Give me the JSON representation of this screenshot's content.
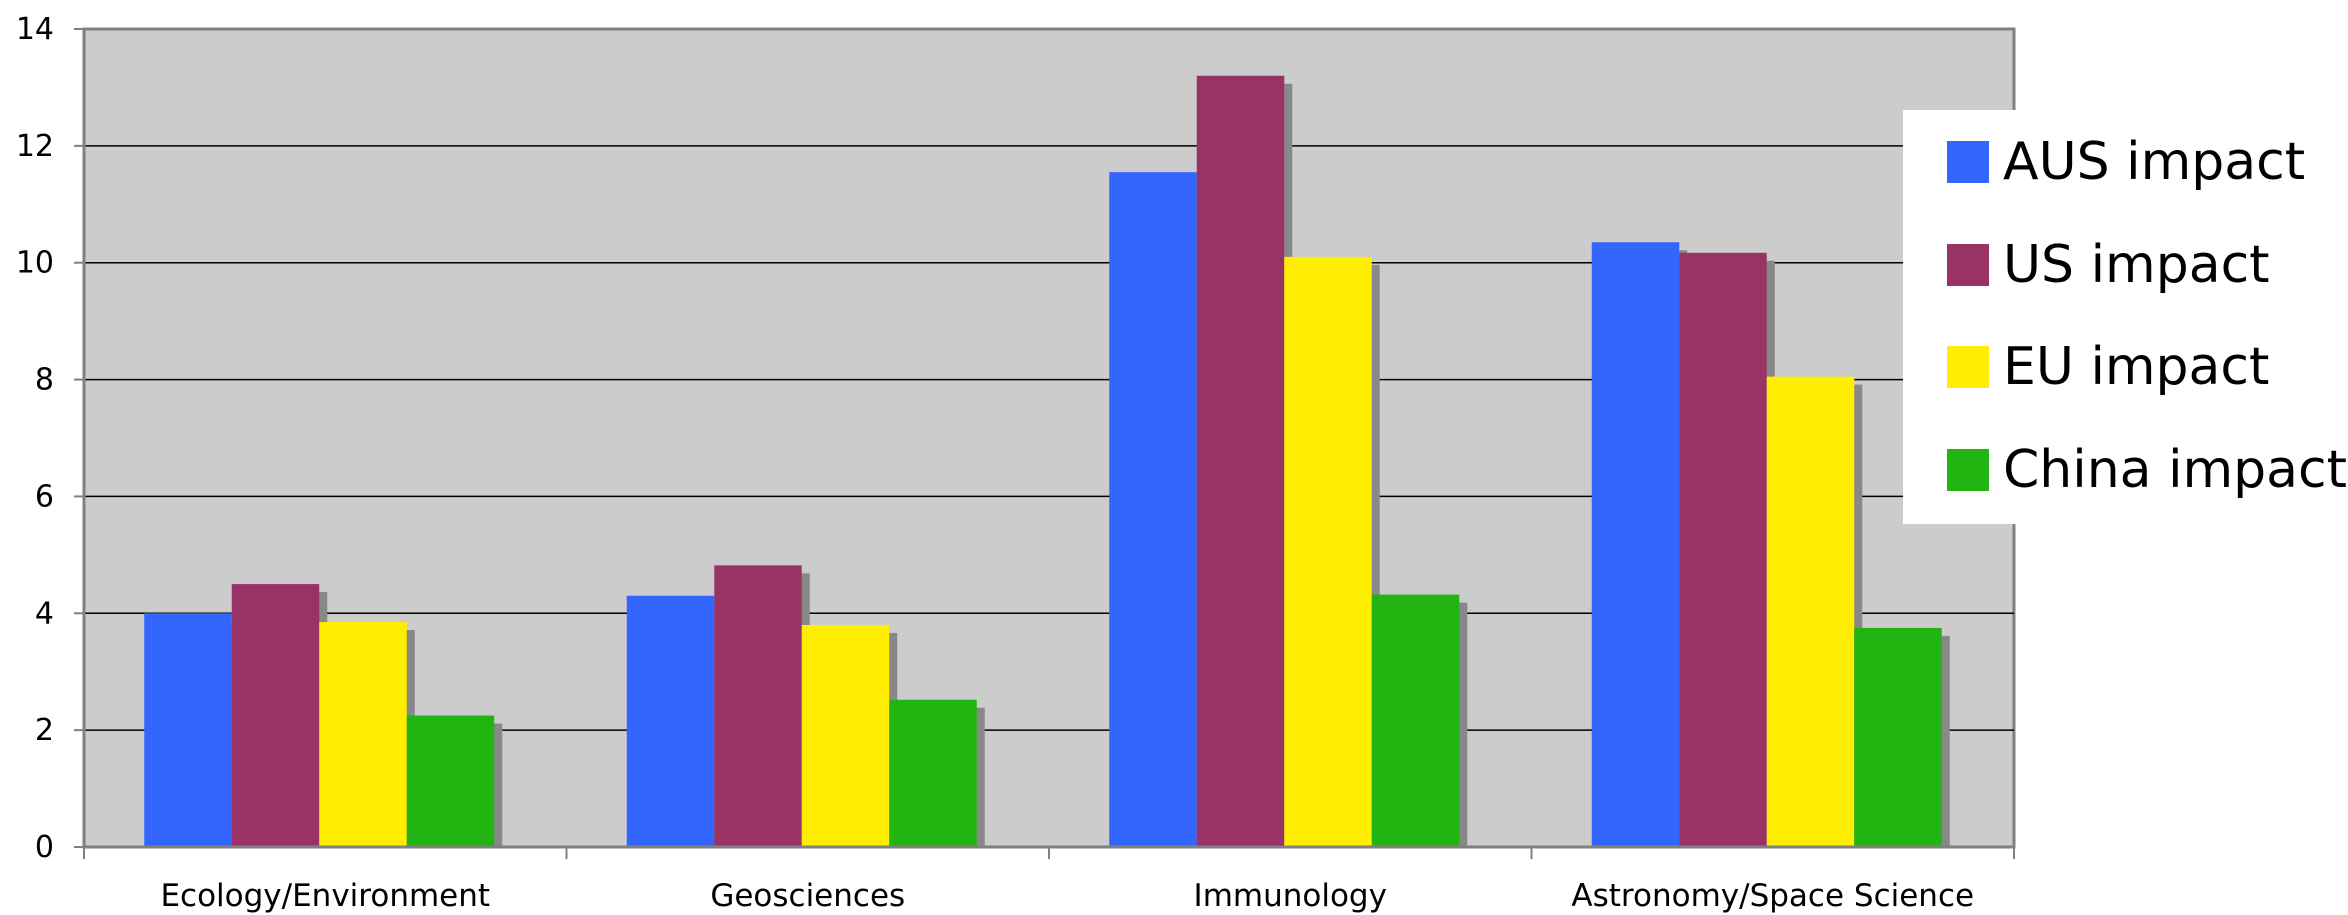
{
  "chart_data": {
    "type": "bar",
    "title": "",
    "xlabel": "",
    "ylabel": "",
    "categories": [
      "Ecology/Environment",
      "Geosciences",
      "Immunology",
      "Astronomy/Space Science"
    ],
    "series": [
      {
        "name": "AUS impact",
        "color": "#3366ff",
        "values": [
          4.0,
          4.3,
          11.55,
          10.35
        ]
      },
      {
        "name": "US impact",
        "color": "#993366",
        "values": [
          4.5,
          4.82,
          13.2,
          10.17
        ]
      },
      {
        "name": "EU impact",
        "color": "#ffee00",
        "values": [
          3.85,
          3.8,
          10.1,
          8.05
        ]
      },
      {
        "name": "China impact",
        "color": "#22b411",
        "values": [
          2.25,
          2.52,
          4.32,
          3.75
        ]
      }
    ],
    "ylim": [
      0,
      14
    ],
    "yticks": [
      "0",
      "2",
      "4",
      "6",
      "8",
      "10",
      "12",
      "14"
    ],
    "grid": true,
    "legend": "right",
    "plot_background": "#cccccc",
    "shadow_color": "#888888"
  }
}
